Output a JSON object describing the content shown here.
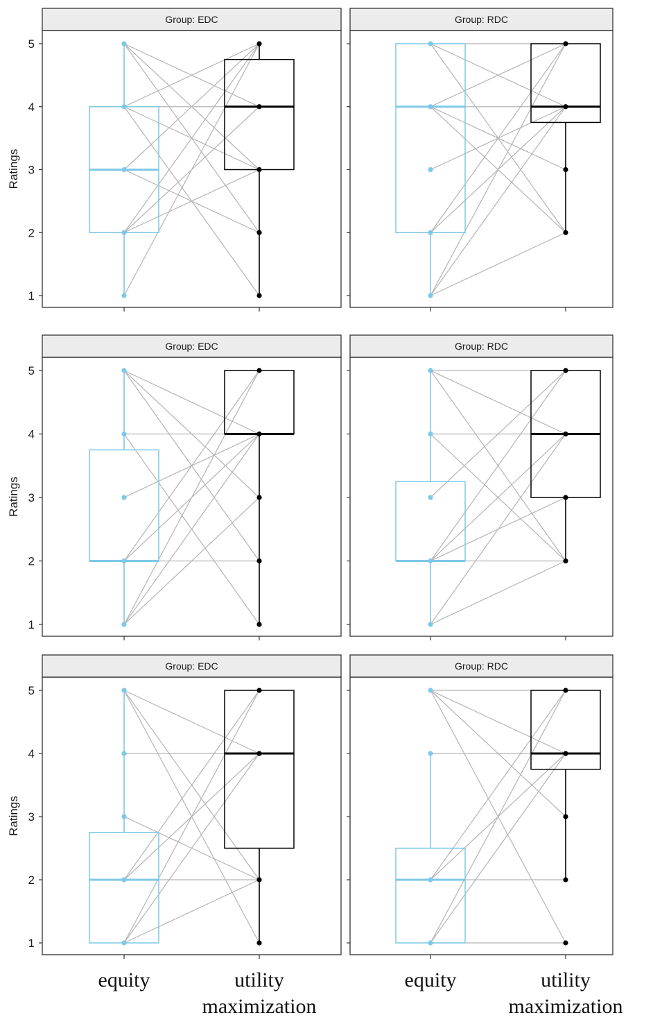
{
  "chart_data": {
    "type": "box",
    "ylabel": "Ratings",
    "ylim": [
      0.6,
      5.4
    ],
    "yticks": [
      1,
      2,
      3,
      4,
      5
    ],
    "categories": [
      "equity",
      "utility\nmaximization"
    ],
    "category_lines": [
      [
        "equity"
      ],
      [
        "utility",
        "maximization"
      ]
    ],
    "category_colors": [
      "#7ec8e8",
      "#000000"
    ],
    "paired_line_color": "#b4b4b4",
    "panels": [
      {
        "strip": "Group: EDC",
        "boxes": [
          {
            "q1": 2,
            "median": 3,
            "q3": 4,
            "whisker_low": 1,
            "whisker_high": 5,
            "points": [
              1,
              2,
              3,
              4,
              5
            ]
          },
          {
            "q1": 3,
            "median": 4,
            "q3": 4.75,
            "whisker_low": 1,
            "whisker_high": 5,
            "points": [
              1,
              2,
              3,
              4,
              5
            ]
          }
        ],
        "pairs": [
          [
            5,
            4
          ],
          [
            5,
            3
          ],
          [
            5,
            2
          ],
          [
            4,
            5
          ],
          [
            4,
            4
          ],
          [
            4,
            3
          ],
          [
            4,
            1
          ],
          [
            3,
            5
          ],
          [
            3,
            2
          ],
          [
            2,
            5
          ],
          [
            2,
            4
          ],
          [
            2,
            3
          ],
          [
            1,
            5
          ]
        ]
      },
      {
        "strip": "Group: RDC",
        "boxes": [
          {
            "q1": 2,
            "median": 4,
            "q3": 5,
            "whisker_low": 1,
            "whisker_high": 5,
            "points": [
              1,
              2,
              3,
              4,
              5
            ]
          },
          {
            "q1": 3.75,
            "median": 4,
            "q3": 5,
            "whisker_low": 2,
            "whisker_high": 5,
            "points": [
              2,
              3,
              4,
              5
            ]
          }
        ],
        "pairs": [
          [
            5,
            5
          ],
          [
            5,
            4
          ],
          [
            5,
            2
          ],
          [
            4,
            5
          ],
          [
            4,
            4
          ],
          [
            4,
            3
          ],
          [
            4,
            2
          ],
          [
            3,
            4
          ],
          [
            2,
            5
          ],
          [
            2,
            4
          ],
          [
            1,
            5
          ],
          [
            1,
            4
          ],
          [
            1,
            2
          ]
        ]
      },
      {
        "strip": "Group: EDC",
        "boxes": [
          {
            "q1": 2,
            "median": 2,
            "q3": 3.75,
            "whisker_low": 1,
            "whisker_high": 5,
            "points": [
              1,
              2,
              3,
              4,
              5
            ]
          },
          {
            "q1": 4,
            "median": 4,
            "q3": 5,
            "whisker_low": 1,
            "whisker_high": 5,
            "points": [
              1,
              2,
              3,
              4,
              5
            ]
          }
        ],
        "pairs": [
          [
            5,
            4
          ],
          [
            5,
            3
          ],
          [
            5,
            2
          ],
          [
            4,
            4
          ],
          [
            4,
            1
          ],
          [
            3,
            4
          ],
          [
            2,
            5
          ],
          [
            2,
            4
          ],
          [
            2,
            2
          ],
          [
            1,
            5
          ],
          [
            1,
            4
          ],
          [
            1,
            3
          ]
        ]
      },
      {
        "strip": "Group: RDC",
        "boxes": [
          {
            "q1": 2,
            "median": 2,
            "q3": 3.25,
            "whisker_low": 1,
            "whisker_high": 5,
            "points": [
              1,
              2,
              3,
              4,
              5
            ]
          },
          {
            "q1": 3,
            "median": 4,
            "q3": 5,
            "whisker_low": 2,
            "whisker_high": 5,
            "points": [
              2,
              3,
              4,
              5
            ]
          }
        ],
        "pairs": [
          [
            5,
            5
          ],
          [
            5,
            4
          ],
          [
            5,
            2
          ],
          [
            4,
            4
          ],
          [
            4,
            2
          ],
          [
            3,
            5
          ],
          [
            2,
            5
          ],
          [
            2,
            4
          ],
          [
            2,
            3
          ],
          [
            2,
            2
          ],
          [
            1,
            4
          ],
          [
            1,
            2
          ]
        ]
      },
      {
        "strip": "Group: EDC",
        "boxes": [
          {
            "q1": 1,
            "median": 2,
            "q3": 2.75,
            "whisker_low": 1,
            "whisker_high": 5,
            "points": [
              1,
              2,
              3,
              4,
              5
            ]
          },
          {
            "q1": 2.5,
            "median": 4,
            "q3": 5,
            "whisker_low": 1,
            "whisker_high": 5,
            "points": [
              1,
              2,
              4,
              5
            ]
          }
        ],
        "pairs": [
          [
            5,
            4
          ],
          [
            5,
            2
          ],
          [
            5,
            1
          ],
          [
            4,
            4
          ],
          [
            3,
            2
          ],
          [
            2,
            5
          ],
          [
            2,
            4
          ],
          [
            2,
            2
          ],
          [
            1,
            5
          ],
          [
            1,
            4
          ],
          [
            1,
            2
          ]
        ]
      },
      {
        "strip": "Group: RDC",
        "boxes": [
          {
            "q1": 1,
            "median": 2,
            "q3": 2.5,
            "whisker_low": 1,
            "whisker_high": 4,
            "points": [
              1,
              2,
              4,
              5
            ]
          },
          {
            "q1": 3.75,
            "median": 4,
            "q3": 5,
            "whisker_low": 2,
            "whisker_high": 5,
            "points": [
              1,
              2,
              3,
              4,
              5
            ]
          }
        ],
        "pairs": [
          [
            5,
            5
          ],
          [
            5,
            4
          ],
          [
            5,
            3
          ],
          [
            5,
            1
          ],
          [
            4,
            4
          ],
          [
            2,
            5
          ],
          [
            2,
            4
          ],
          [
            2,
            2
          ],
          [
            1,
            5
          ],
          [
            1,
            4
          ],
          [
            1,
            1
          ]
        ]
      }
    ]
  }
}
